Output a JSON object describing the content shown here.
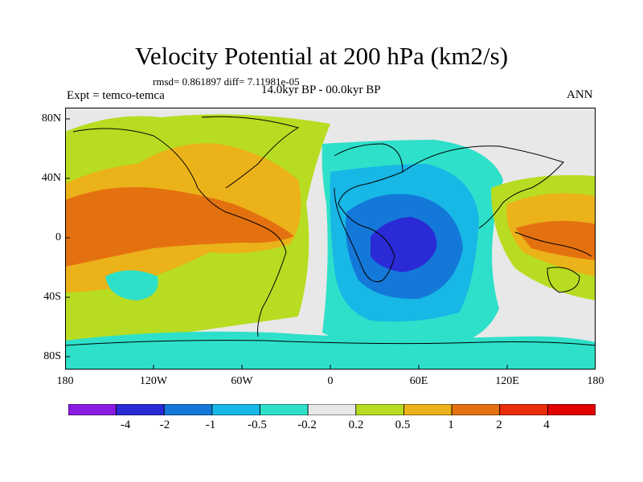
{
  "title": "Velocity Potential at 200 hPa (km2/s)",
  "stats": "rmsd= 0.861897 diff= 7.11981e-05",
  "experiment": "Expt = temco-temca",
  "period": "14.0kyr BP - 00.0kyr BP",
  "season": "ANN",
  "lat_labels": [
    "80N",
    "40N",
    "0",
    "40S",
    "80S"
  ],
  "lon_labels": [
    "180",
    "120W",
    "60W",
    "0",
    "60E",
    "120E",
    "180"
  ],
  "colorbar": {
    "labels": [
      "-4",
      "-2",
      "-1",
      "-0.5",
      "-0.2",
      "0.2",
      "0.5",
      "1",
      "2",
      "4"
    ],
    "colors": [
      "#8a1be3",
      "#2a2ad6",
      "#1478d8",
      "#17b7e6",
      "#2ee0c9",
      "#e8e8e8",
      "#b8dc22",
      "#ebb21a",
      "#e4710f",
      "#ea2c0a",
      "#e00000"
    ]
  }
}
